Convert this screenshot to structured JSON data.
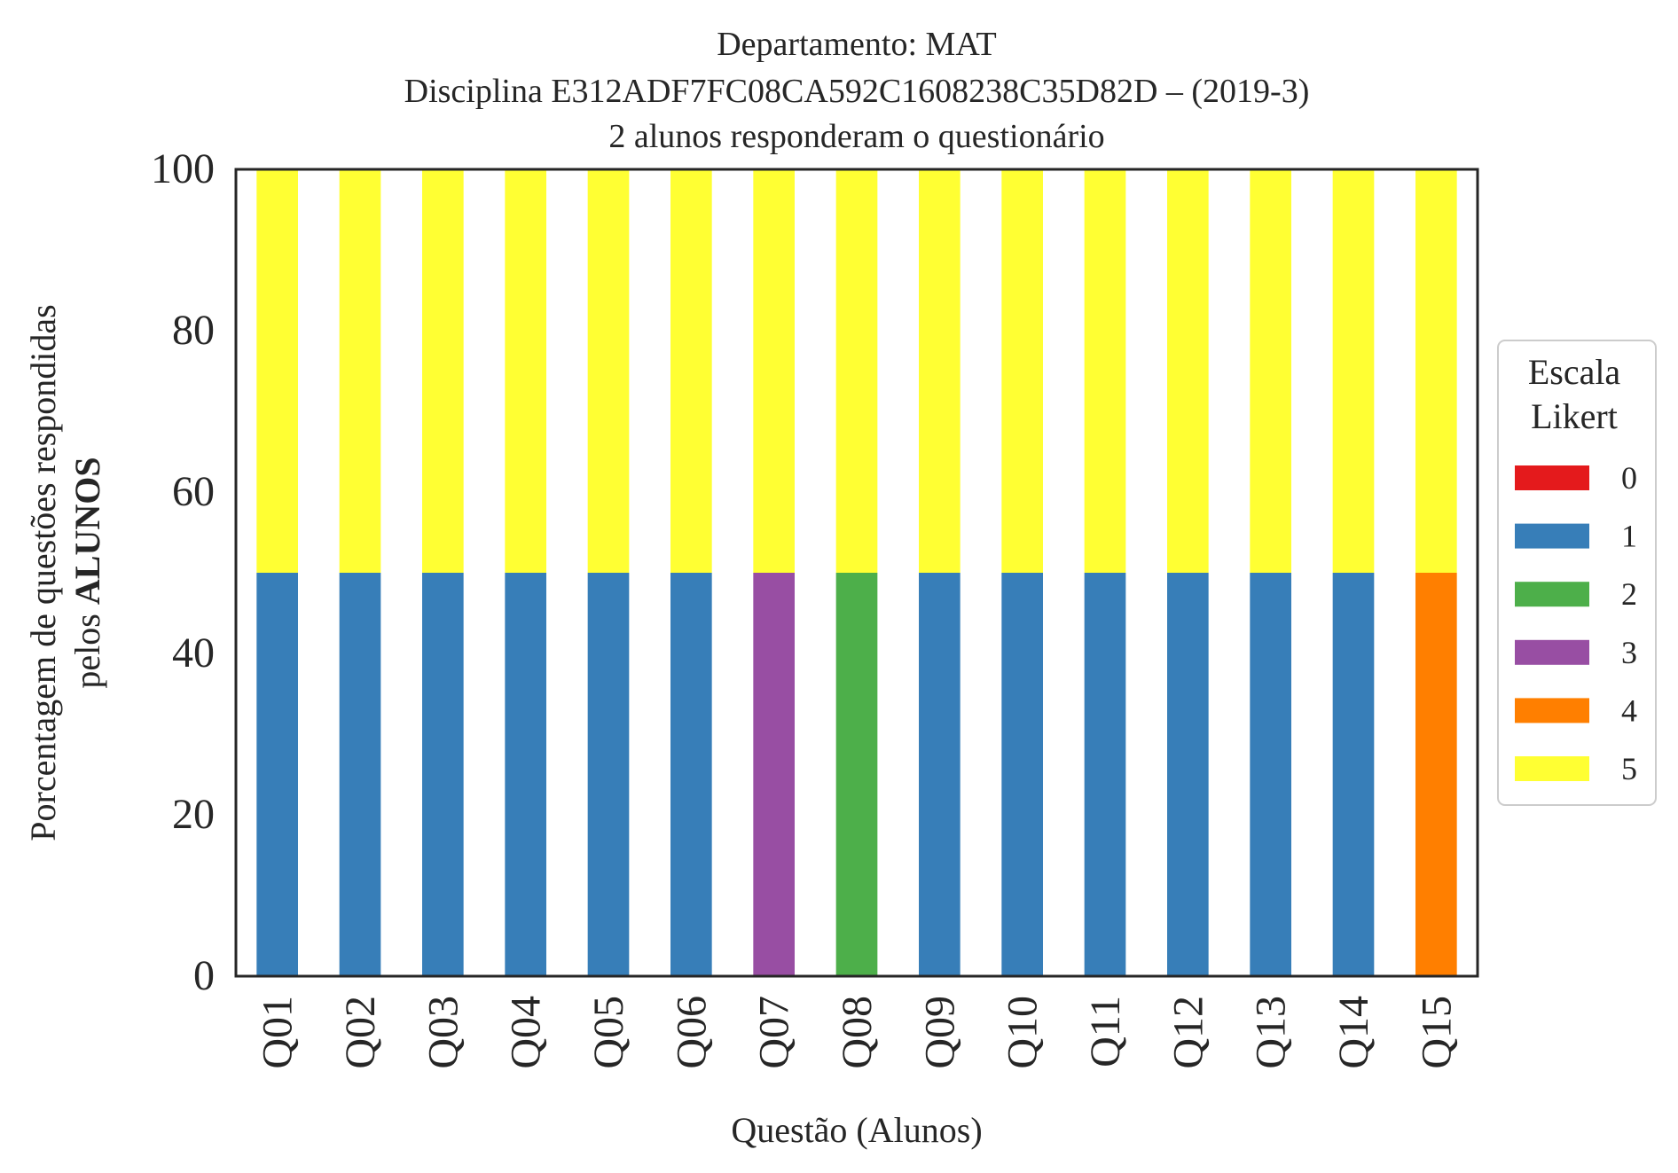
{
  "chart_data": {
    "type": "bar",
    "stacked": true,
    "title_lines": [
      "Departamento: MAT",
      "Disciplina E312ADF7FC08CA592C1608238C35D82D – (2019-3)",
      "2 alunos responderam o questionário"
    ],
    "xlabel": "Questão (Alunos)",
    "ylabel_line1": "Porcentagem de questões respondidas",
    "ylabel_line2_prefix": "pelos ",
    "ylabel_line2_bold": "ALUNOS",
    "ylim": [
      0,
      100
    ],
    "yticks": [
      0,
      20,
      40,
      60,
      80,
      100
    ],
    "grid": false,
    "categories": [
      "Q01",
      "Q02",
      "Q03",
      "Q04",
      "Q05",
      "Q06",
      "Q07",
      "Q08",
      "Q09",
      "Q10",
      "Q11",
      "Q12",
      "Q13",
      "Q14",
      "Q15"
    ],
    "series": [
      {
        "name": "0",
        "color": "#e41a1c",
        "values": [
          0,
          0,
          0,
          0,
          0,
          0,
          0,
          0,
          0,
          0,
          0,
          0,
          0,
          0,
          0
        ]
      },
      {
        "name": "1",
        "color": "#377eb8",
        "values": [
          50,
          50,
          50,
          50,
          50,
          50,
          0,
          0,
          50,
          50,
          50,
          50,
          50,
          50,
          0
        ]
      },
      {
        "name": "2",
        "color": "#4daf4a",
        "values": [
          0,
          0,
          0,
          0,
          0,
          0,
          0,
          50,
          0,
          0,
          0,
          0,
          0,
          0,
          0
        ]
      },
      {
        "name": "3",
        "color": "#984ea3",
        "values": [
          0,
          0,
          0,
          0,
          0,
          0,
          50,
          0,
          0,
          0,
          0,
          0,
          0,
          0,
          0
        ]
      },
      {
        "name": "4",
        "color": "#ff7f00",
        "values": [
          0,
          0,
          0,
          0,
          0,
          0,
          0,
          0,
          0,
          0,
          0,
          0,
          0,
          0,
          50
        ]
      },
      {
        "name": "5",
        "color": "#ffff33",
        "values": [
          50,
          50,
          50,
          50,
          50,
          50,
          50,
          50,
          50,
          50,
          50,
          50,
          50,
          50,
          50
        ]
      }
    ],
    "legend": {
      "title_lines": [
        "Escala",
        "Likert"
      ],
      "placement": "right"
    }
  }
}
